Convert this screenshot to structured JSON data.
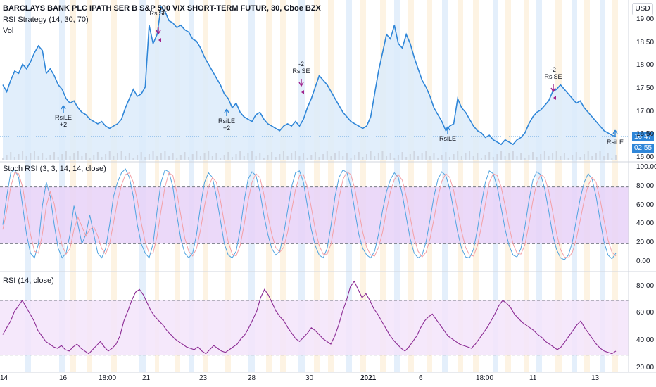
{
  "header": {
    "symbol_title": "BARCLAYS BANK PLC IPATH SER B S&P 500 VIX SHORT-TERM FUTUR, 30, Cboe BZX",
    "strategy_label": "RSI Strategy (14, 30, 70)",
    "vol_label": "Vol"
  },
  "currency_button": "USD",
  "price_badge": {
    "value": "16.47",
    "countdown": "02:55"
  },
  "panes": {
    "stoch_label": "Stoch RSI (3, 3, 14, 14, close)",
    "rsi_label": "RSI (14, close)"
  },
  "colors": {
    "price_line": "#2f86d8",
    "price_fill": "#dcebfa",
    "stoch_k": "#4fa3e0",
    "stoch_d": "#f4a0a6",
    "stoch_band": "#e8d2f8",
    "rsi_line": "#8c2b94",
    "rsi_band": "#f3e4fa",
    "session_blue": "#dbe9f9",
    "session_orange": "#fcefd9",
    "signal_up": "#2f86d8",
    "signal_down": "#a0238c",
    "badge_price": "#2f86d8",
    "badge_time": "#2f86d8"
  },
  "signals": [
    {
      "label": "RsiLE",
      "qty": "+2",
      "kind": "long",
      "x_day": 16.0
    },
    {
      "label": "RsiSE",
      "qty": "",
      "kind": "short",
      "x_day": 21.3
    },
    {
      "label": "RsiLE",
      "qty": "+2",
      "kind": "long",
      "x_day": 23.5
    },
    {
      "label": "RsiSE",
      "qty": "-2",
      "kind": "short",
      "x_day": 29.7
    },
    {
      "label": "RsiLE",
      "qty": "",
      "kind": "long",
      "x_day": 7.5
    },
    {
      "label": "RsiSE",
      "qty": "-2",
      "kind": "short",
      "x_day": 11.8
    },
    {
      "label": "RsiLE",
      "qty": "",
      "kind": "long",
      "x_day": 13.9
    }
  ],
  "chart_data": [
    {
      "type": "line",
      "pane": "price",
      "title": "BARCLAYS BANK PLC IPATH SER B S&P 500 VIX SHORT-TERM FUTUR, 30, Cboe BZX",
      "x_ticks": [
        "14",
        "16",
        "18:00",
        "21",
        "23",
        "28",
        "30",
        "2021",
        "6",
        "18:00",
        "11",
        "13"
      ],
      "y_ticks": [
        16.0,
        16.5,
        17.0,
        17.5,
        18.0,
        18.5,
        19.0
      ],
      "ylim": [
        15.95,
        19.45
      ],
      "last_value": 16.47,
      "values": [
        17.6,
        17.45,
        17.7,
        17.9,
        17.85,
        18.05,
        17.95,
        18.1,
        18.3,
        18.45,
        18.35,
        17.85,
        17.95,
        17.8,
        17.6,
        17.5,
        17.3,
        17.2,
        17.25,
        17.1,
        17.0,
        16.95,
        16.85,
        16.8,
        16.75,
        16.8,
        16.7,
        16.65,
        16.7,
        16.75,
        16.85,
        17.1,
        17.3,
        17.5,
        17.35,
        17.4,
        17.55,
        18.9,
        18.5,
        18.7,
        19.3,
        19.2,
        19.0,
        18.95,
        18.85,
        18.9,
        18.8,
        18.75,
        18.6,
        18.55,
        18.4,
        18.2,
        18.05,
        17.9,
        17.75,
        17.6,
        17.4,
        17.3,
        17.1,
        17.2,
        17.0,
        16.9,
        16.85,
        16.8,
        16.95,
        17.0,
        16.85,
        16.75,
        16.7,
        16.65,
        16.6,
        16.7,
        16.75,
        16.7,
        16.8,
        16.7,
        16.85,
        17.1,
        17.3,
        17.55,
        17.8,
        17.7,
        17.6,
        17.45,
        17.3,
        17.15,
        17.0,
        16.9,
        16.8,
        16.75,
        16.7,
        16.65,
        16.7,
        16.9,
        17.4,
        17.9,
        18.3,
        18.7,
        18.6,
        18.9,
        18.5,
        18.4,
        18.7,
        18.5,
        18.2,
        17.95,
        17.7,
        17.55,
        17.35,
        17.1,
        16.95,
        16.8,
        16.6,
        16.7,
        16.75,
        17.3,
        17.1,
        17.0,
        16.85,
        16.7,
        16.6,
        16.55,
        16.45,
        16.5,
        16.4,
        16.35,
        16.3,
        16.4,
        16.35,
        16.3,
        16.4,
        16.45,
        16.55,
        16.75,
        16.9,
        17.0,
        17.05,
        17.15,
        17.25,
        17.45,
        17.5,
        17.6,
        17.5,
        17.4,
        17.3,
        17.2,
        17.25,
        17.1,
        17.0,
        16.9,
        16.8,
        16.7,
        16.6,
        16.55,
        16.5,
        16.47
      ]
    },
    {
      "type": "line",
      "pane": "stoch_rsi",
      "title": "Stoch RSI (3, 3, 14, 14, close)",
      "y_ticks": [
        0.0,
        20.0,
        40.0,
        60.0,
        80.0,
        100.0
      ],
      "ylim": [
        -5,
        105
      ],
      "bands": [
        20,
        80
      ],
      "series": [
        {
          "name": "K",
          "values": [
            40,
            70,
            95,
            98,
            90,
            60,
            30,
            10,
            5,
            20,
            60,
            85,
            70,
            40,
            15,
            5,
            10,
            30,
            60,
            40,
            20,
            30,
            50,
            30,
            10,
            5,
            15,
            40,
            70,
            85,
            95,
            99,
            90,
            70,
            40,
            20,
            10,
            5,
            20,
            55,
            85,
            98,
            96,
            80,
            50,
            25,
            10,
            5,
            10,
            30,
            60,
            85,
            95,
            90,
            70,
            45,
            20,
            8,
            5,
            12,
            35,
            65,
            88,
            96,
            92,
            75,
            50,
            30,
            15,
            8,
            12,
            30,
            55,
            80,
            95,
            97,
            85,
            60,
            35,
            18,
            8,
            5,
            15,
            40,
            70,
            90,
            98,
            95,
            80,
            55,
            30,
            15,
            8,
            5,
            12,
            30,
            55,
            75,
            88,
            95,
            90,
            72,
            48,
            25,
            10,
            5,
            8,
            22,
            45,
            70,
            88,
            96,
            92,
            78,
            55,
            32,
            15,
            6,
            5,
            14,
            35,
            62,
            85,
            97,
            94,
            80,
            58,
            35,
            18,
            8,
            6,
            15,
            38,
            65,
            87,
            96,
            93,
            78,
            55,
            30,
            14,
            5,
            3,
            8,
            22,
            45,
            68,
            85,
            94,
            88,
            70,
            45,
            22,
            8,
            4,
            10
          ]
        },
        {
          "name": "D",
          "values": [
            35,
            55,
            80,
            95,
            94,
            80,
            55,
            30,
            12,
            10,
            30,
            60,
            75,
            62,
            38,
            18,
            9,
            15,
            35,
            48,
            38,
            28,
            35,
            38,
            28,
            15,
            9,
            20,
            42,
            65,
            82,
            93,
            95,
            85,
            66,
            42,
            22,
            10,
            10,
            28,
            55,
            80,
            95,
            92,
            74,
            50,
            26,
            12,
            7,
            15,
            35,
            60,
            80,
            90,
            85,
            66,
            42,
            22,
            9,
            7,
            18,
            40,
            65,
            85,
            94,
            90,
            72,
            50,
            30,
            16,
            11,
            16,
            32,
            55,
            77,
            92,
            93,
            80,
            58,
            35,
            18,
            9,
            9,
            20,
            44,
            68,
            88,
            96,
            93,
            78,
            55,
            32,
            16,
            8,
            7,
            16,
            32,
            55,
            75,
            88,
            93,
            87,
            70,
            48,
            26,
            12,
            6,
            11,
            25,
            46,
            69,
            86,
            94,
            90,
            76,
            55,
            33,
            16,
            8,
            7,
            18,
            38,
            62,
            85,
            94,
            92,
            80,
            60,
            38,
            20,
            10,
            9,
            19,
            40,
            65,
            84,
            93,
            90,
            76,
            54,
            31,
            14,
            6,
            5,
            11,
            25,
            45,
            66,
            82,
            90,
            85,
            67,
            45,
            24,
            11,
            7
          ]
        }
      ]
    },
    {
      "type": "line",
      "pane": "rsi",
      "title": "RSI (14, close)",
      "y_ticks": [
        20.0,
        40.0,
        60.0,
        80.0
      ],
      "ylim": [
        18,
        88
      ],
      "bands": [
        30,
        70
      ],
      "values": [
        45,
        50,
        55,
        62,
        66,
        70,
        65,
        60,
        55,
        48,
        44,
        40,
        38,
        36,
        35,
        37,
        34,
        33,
        36,
        38,
        35,
        33,
        31,
        34,
        37,
        40,
        36,
        33,
        35,
        38,
        44,
        55,
        62,
        70,
        76,
        78,
        74,
        68,
        62,
        58,
        55,
        52,
        48,
        45,
        42,
        40,
        38,
        36,
        35,
        34,
        36,
        33,
        31,
        34,
        37,
        35,
        33,
        32,
        34,
        36,
        38,
        42,
        45,
        50,
        56,
        62,
        72,
        78,
        74,
        68,
        62,
        58,
        55,
        50,
        46,
        42,
        40,
        43,
        46,
        50,
        48,
        45,
        42,
        40,
        38,
        44,
        52,
        62,
        70,
        80,
        84,
        78,
        72,
        75,
        70,
        64,
        60,
        55,
        50,
        45,
        41,
        38,
        35,
        33,
        36,
        40,
        44,
        50,
        55,
        58,
        60,
        56,
        52,
        48,
        44,
        42,
        40,
        38,
        37,
        36,
        35,
        38,
        42,
        46,
        50,
        55,
        60,
        66,
        70,
        68,
        65,
        60,
        57,
        54,
        52,
        50,
        48,
        45,
        43,
        40,
        38,
        36,
        34,
        36,
        40,
        44,
        48,
        52,
        55,
        50,
        46,
        42,
        38,
        35,
        33,
        32,
        31,
        33
      ]
    }
  ]
}
